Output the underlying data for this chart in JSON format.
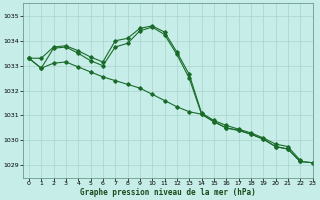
{
  "xlabel": "Graphe pression niveau de la mer (hPa)",
  "xlim": [
    -0.5,
    23
  ],
  "ylim": [
    1028.5,
    1035.5
  ],
  "yticks": [
    1029,
    1030,
    1031,
    1032,
    1033,
    1034,
    1035
  ],
  "xticks": [
    0,
    1,
    2,
    3,
    4,
    5,
    6,
    7,
    8,
    9,
    10,
    11,
    12,
    13,
    14,
    15,
    16,
    17,
    18,
    19,
    20,
    21,
    22,
    23
  ],
  "background_color": "#c6ede8",
  "grid_color": "#a8d4cc",
  "line_color": "#1a6b2a",
  "series": [
    {
      "x": [
        0,
        1,
        2,
        3,
        4,
        5,
        6,
        7,
        8,
        9,
        10,
        11,
        12,
        13,
        14,
        15,
        16,
        17,
        18,
        19,
        20,
        21,
        22
      ],
      "y": [
        1033.3,
        1033.3,
        1033.75,
        1033.8,
        1033.6,
        1033.35,
        1033.15,
        1034.0,
        1034.1,
        1034.5,
        1034.6,
        1034.35,
        1033.55,
        1032.65,
        1031.1,
        1030.8,
        1030.6,
        1030.45,
        1030.3,
        1030.1,
        1029.85,
        1029.75,
        1029.2
      ]
    },
    {
      "x": [
        0,
        1,
        2,
        3,
        4,
        5,
        6,
        7,
        8,
        9,
        10,
        11,
        12,
        13,
        14,
        15,
        16,
        17,
        18,
        19,
        20,
        21,
        22,
        23
      ],
      "y": [
        1033.3,
        1032.9,
        1033.7,
        1033.75,
        1033.5,
        1033.2,
        1033.0,
        1033.75,
        1033.9,
        1034.4,
        1034.55,
        1034.25,
        1033.45,
        1032.5,
        1031.05,
        1030.75,
        1030.5,
        1030.4,
        1030.25,
        1030.05,
        1029.75,
        1029.65,
        1029.15,
        1029.1
      ]
    },
    {
      "x": [
        0,
        1,
        2,
        3,
        4,
        5,
        6,
        7,
        8,
        9,
        10,
        11,
        12,
        13,
        14,
        15,
        16,
        17,
        18,
        19,
        20,
        21,
        22,
        23
      ],
      "y": [
        1033.3,
        1032.9,
        1033.1,
        1033.15,
        1032.95,
        1032.75,
        1032.55,
        1032.4,
        1032.25,
        1032.1,
        1031.85,
        1031.6,
        1031.35,
        1031.15,
        1031.05,
        1030.75,
        1030.5,
        1030.4,
        1030.25,
        1030.05,
        1029.75,
        1029.65,
        1029.15,
        1029.1
      ]
    }
  ]
}
